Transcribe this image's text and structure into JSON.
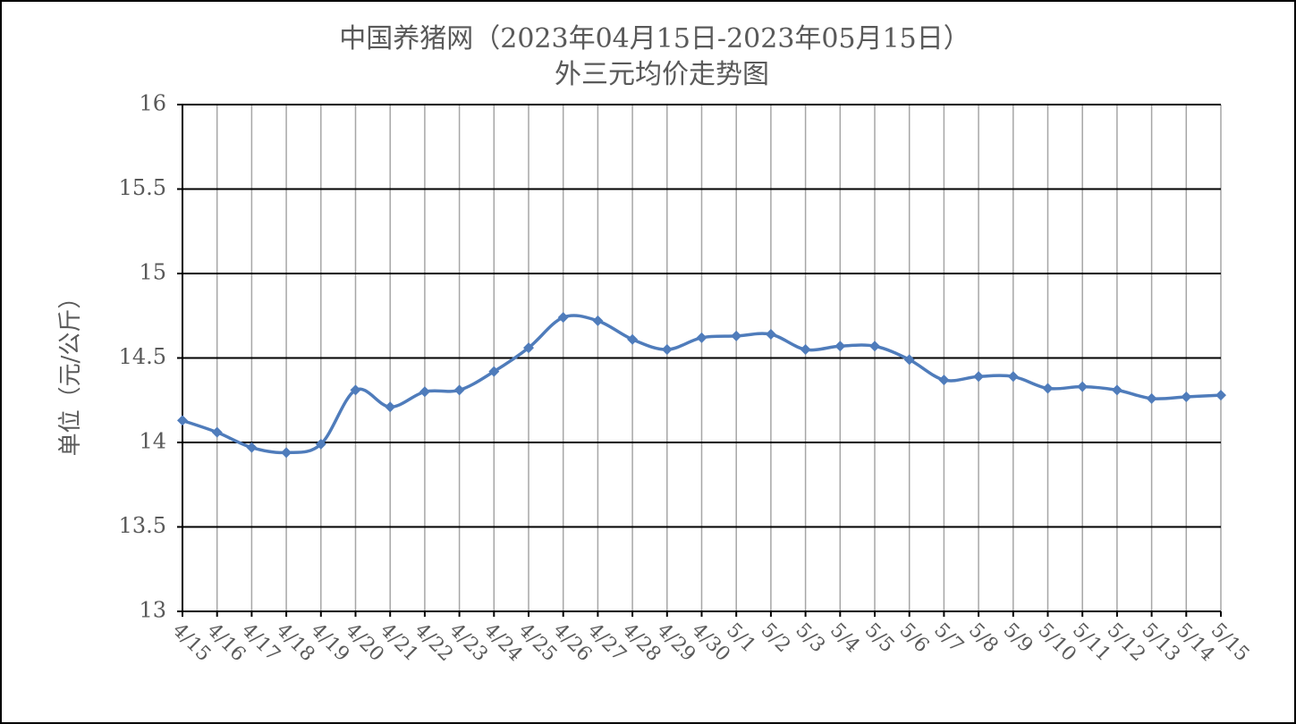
{
  "chart_data": {
    "type": "line",
    "title": "中国养猪网（2023年04月15日-2023年05月15日）",
    "subtitle": "外三元均价走势图",
    "y_label": "单位（元/公斤）",
    "categories": [
      "4/15",
      "4/16",
      "4/17",
      "4/18",
      "4/19",
      "4/20",
      "4/21",
      "4/22",
      "4/23",
      "4/24",
      "4/25",
      "4/26",
      "4/27",
      "4/28",
      "4/29",
      "4/30",
      "5/1",
      "5/2",
      "5/3",
      "5/4",
      "5/5",
      "5/6",
      "5/7",
      "5/8",
      "5/9",
      "5/10",
      "5/11",
      "5/12",
      "5/13",
      "5/14",
      "5/15"
    ],
    "series": [
      {
        "name": "外三元均价",
        "color": "#4f7cbb",
        "values": [
          14.13,
          14.06,
          13.97,
          13.94,
          13.99,
          14.31,
          14.21,
          14.3,
          14.31,
          14.42,
          14.56,
          14.74,
          14.72,
          14.61,
          14.55,
          14.62,
          14.63,
          14.64,
          14.55,
          14.57,
          14.57,
          14.49,
          14.37,
          14.39,
          14.39,
          14.32,
          14.33,
          14.31,
          14.26,
          14.27,
          14.28
        ]
      }
    ],
    "ylim": [
      13,
      16
    ],
    "yticks": [
      13,
      13.5,
      14,
      14.5,
      15,
      15.5,
      16
    ],
    "grid": true,
    "smooth": true
  }
}
